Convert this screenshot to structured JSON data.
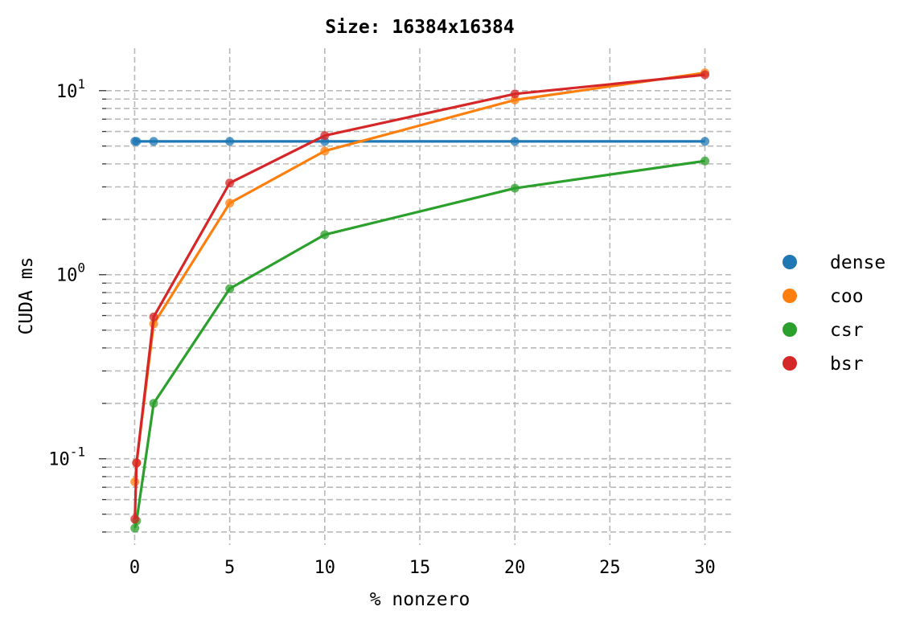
{
  "chart_data": {
    "type": "line",
    "title": "Size: 16384x16384",
    "xlabel": "% nonzero",
    "ylabel": "CUDA ms",
    "yscale": "log",
    "xlim": [
      -1.5,
      31.5
    ],
    "ylim": [
      0.034,
      17.0
    ],
    "xticks": [
      0,
      5,
      10,
      15,
      20,
      25,
      30
    ],
    "yticks": [
      {
        "base": "10",
        "exp": "-1",
        "value": 0.1
      },
      {
        "base": "10",
        "exp": "0",
        "value": 1
      },
      {
        "base": "10",
        "exp": "1",
        "value": 10
      }
    ],
    "grid": true,
    "legend_position": "right",
    "markers": true,
    "series": [
      {
        "name": "dense",
        "color": "#1f77b4",
        "x": [
          0.01,
          0.1,
          1,
          5,
          10,
          20,
          30
        ],
        "y": [
          5.3,
          5.3,
          5.3,
          5.3,
          5.3,
          5.3,
          5.3
        ]
      },
      {
        "name": "coo",
        "color": "#ff7f0e",
        "x": [
          0.01,
          0.1,
          1,
          5,
          10,
          20,
          30
        ],
        "y": [
          0.075,
          0.095,
          0.54,
          2.45,
          4.7,
          8.9,
          12.5
        ]
      },
      {
        "name": "csr",
        "color": "#2ca02c",
        "x": [
          0.01,
          0.1,
          1,
          5,
          10,
          20,
          30
        ],
        "y": [
          0.042,
          0.046,
          0.2,
          0.84,
          1.65,
          2.95,
          4.15
        ]
      },
      {
        "name": "bsr",
        "color": "#d62728",
        "x": [
          0.01,
          0.1,
          1,
          5,
          10,
          20,
          30
        ],
        "y": [
          0.047,
          0.095,
          0.59,
          3.15,
          5.7,
          9.6,
          12.2
        ]
      }
    ]
  }
}
